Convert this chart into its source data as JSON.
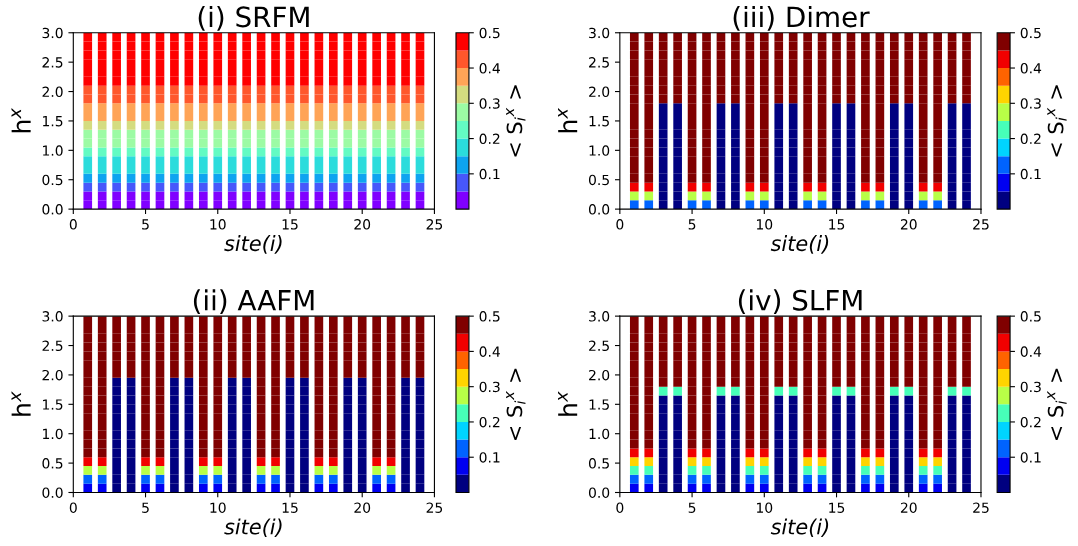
{
  "chart_data": [
    {
      "type": "heatmap",
      "title": "(i) SRFM",
      "xlabel": "site(i)",
      "ylabel": "h$^{x}$",
      "clabel": "< S$_{i}$$^{x}$ >",
      "x": [
        1,
        2,
        3,
        4,
        5,
        6,
        7,
        8,
        9,
        10,
        11,
        12,
        13,
        14,
        15,
        16,
        17,
        18,
        19,
        20,
        21,
        22,
        23,
        24
      ],
      "xlim": [
        0,
        25
      ],
      "xticks": [
        0,
        5,
        10,
        15,
        20,
        25
      ],
      "ylim": [
        0,
        3
      ],
      "yticks": [
        {
          "value": 0,
          "label": "0.0"
        },
        {
          "value": 0.5,
          "label": "0.5"
        },
        {
          "value": 1,
          "label": "1.0"
        },
        {
          "value": 1.5,
          "label": "1.5"
        },
        {
          "value": 2,
          "label": "2.0"
        },
        {
          "value": 2.5,
          "label": "2.5"
        },
        {
          "value": 3,
          "label": "3.0"
        }
      ],
      "clim": [
        0,
        0.5
      ],
      "cticks": [
        0.1,
        0.2,
        0.3,
        0.4,
        0.5
      ],
      "colors": [
        "#8000ff",
        "#4757fb",
        "#0ea4f0",
        "#2bdcdc",
        "#63fbc3",
        "#9cfba4",
        "#d4dc80",
        "#ffa457",
        "#ff572c",
        "#ff0000"
      ],
      "cells": [
        [
          0.5,
          0.5,
          0.5,
          0.5,
          0.5,
          0.5,
          0.5,
          0.5,
          0.5,
          0.5,
          0.5,
          0.5,
          0.5,
          0.5,
          0.5,
          0.5,
          0.5,
          0.5,
          0.5,
          0.5,
          0.5,
          0.5,
          0.5,
          0.5
        ],
        [
          0.49,
          0.49,
          0.49,
          0.49,
          0.49,
          0.49,
          0.49,
          0.49,
          0.49,
          0.49,
          0.49,
          0.49,
          0.49,
          0.49,
          0.49,
          0.49,
          0.49,
          0.49,
          0.49,
          0.49,
          0.49,
          0.49,
          0.49,
          0.49
        ],
        [
          0.49,
          0.49,
          0.49,
          0.49,
          0.49,
          0.49,
          0.49,
          0.49,
          0.49,
          0.49,
          0.49,
          0.49,
          0.49,
          0.49,
          0.49,
          0.49,
          0.49,
          0.49,
          0.49,
          0.49,
          0.49,
          0.49,
          0.49,
          0.49
        ],
        [
          0.48,
          0.48,
          0.48,
          0.48,
          0.48,
          0.48,
          0.48,
          0.48,
          0.48,
          0.48,
          0.48,
          0.48,
          0.48,
          0.48,
          0.48,
          0.48,
          0.48,
          0.48,
          0.48,
          0.48,
          0.48,
          0.48,
          0.48,
          0.48
        ],
        [
          0.47,
          0.47,
          0.47,
          0.47,
          0.47,
          0.47,
          0.47,
          0.47,
          0.47,
          0.47,
          0.47,
          0.47,
          0.47,
          0.47,
          0.47,
          0.47,
          0.47,
          0.47,
          0.47,
          0.47,
          0.47,
          0.47,
          0.47,
          0.47
        ],
        [
          0.46,
          0.46,
          0.46,
          0.46,
          0.46,
          0.46,
          0.46,
          0.46,
          0.46,
          0.46,
          0.46,
          0.46,
          0.46,
          0.46,
          0.46,
          0.46,
          0.46,
          0.46,
          0.46,
          0.46,
          0.46,
          0.46,
          0.46,
          0.46
        ],
        [
          0.44,
          0.44,
          0.44,
          0.44,
          0.44,
          0.44,
          0.44,
          0.44,
          0.44,
          0.44,
          0.44,
          0.44,
          0.44,
          0.44,
          0.44,
          0.44,
          0.44,
          0.44,
          0.44,
          0.44,
          0.44,
          0.44,
          0.44,
          0.44
        ],
        [
          0.41,
          0.41,
          0.41,
          0.41,
          0.41,
          0.41,
          0.41,
          0.41,
          0.41,
          0.41,
          0.41,
          0.41,
          0.41,
          0.41,
          0.41,
          0.41,
          0.41,
          0.41,
          0.41,
          0.41,
          0.41,
          0.41,
          0.41,
          0.41
        ],
        [
          0.385,
          0.385,
          0.385,
          0.385,
          0.385,
          0.385,
          0.385,
          0.385,
          0.385,
          0.385,
          0.385,
          0.385,
          0.385,
          0.385,
          0.385,
          0.385,
          0.385,
          0.385,
          0.385,
          0.385,
          0.385,
          0.385,
          0.385,
          0.385
        ],
        [
          0.355,
          0.355,
          0.355,
          0.355,
          0.355,
          0.355,
          0.355,
          0.355,
          0.355,
          0.355,
          0.355,
          0.355,
          0.355,
          0.355,
          0.355,
          0.355,
          0.355,
          0.355,
          0.355,
          0.355,
          0.355,
          0.355,
          0.355,
          0.355
        ],
        [
          0.325,
          0.325,
          0.325,
          0.325,
          0.325,
          0.325,
          0.325,
          0.325,
          0.325,
          0.325,
          0.325,
          0.325,
          0.325,
          0.325,
          0.325,
          0.325,
          0.325,
          0.325,
          0.325,
          0.325,
          0.325,
          0.325,
          0.325,
          0.325
        ],
        [
          0.295,
          0.295,
          0.295,
          0.295,
          0.295,
          0.295,
          0.295,
          0.295,
          0.295,
          0.295,
          0.295,
          0.295,
          0.295,
          0.295,
          0.295,
          0.295,
          0.295,
          0.295,
          0.295,
          0.295,
          0.295,
          0.295,
          0.295,
          0.295
        ],
        [
          0.265,
          0.265,
          0.265,
          0.265,
          0.265,
          0.265,
          0.265,
          0.265,
          0.265,
          0.265,
          0.265,
          0.265,
          0.265,
          0.265,
          0.265,
          0.265,
          0.265,
          0.265,
          0.265,
          0.265,
          0.265,
          0.265,
          0.265,
          0.265
        ],
        [
          0.23,
          0.23,
          0.23,
          0.23,
          0.23,
          0.23,
          0.23,
          0.23,
          0.23,
          0.23,
          0.23,
          0.23,
          0.23,
          0.23,
          0.23,
          0.23,
          0.23,
          0.23,
          0.23,
          0.23,
          0.23,
          0.23,
          0.23,
          0.23
        ],
        [
          0.195,
          0.195,
          0.195,
          0.195,
          0.195,
          0.195,
          0.195,
          0.195,
          0.195,
          0.195,
          0.195,
          0.195,
          0.195,
          0.195,
          0.195,
          0.195,
          0.195,
          0.195,
          0.195,
          0.195,
          0.195,
          0.195,
          0.195,
          0.195
        ],
        [
          0.155,
          0.155,
          0.155,
          0.155,
          0.155,
          0.155,
          0.155,
          0.155,
          0.155,
          0.155,
          0.155,
          0.155,
          0.155,
          0.155,
          0.155,
          0.155,
          0.155,
          0.155,
          0.155,
          0.155,
          0.155,
          0.155,
          0.155,
          0.155
        ],
        [
          0.12,
          0.12,
          0.12,
          0.12,
          0.12,
          0.12,
          0.12,
          0.12,
          0.12,
          0.12,
          0.12,
          0.12,
          0.12,
          0.12,
          0.12,
          0.12,
          0.12,
          0.12,
          0.12,
          0.12,
          0.12,
          0.12,
          0.12,
          0.12
        ],
        [
          0.08,
          0.08,
          0.08,
          0.08,
          0.08,
          0.08,
          0.08,
          0.08,
          0.08,
          0.08,
          0.08,
          0.08,
          0.08,
          0.08,
          0.08,
          0.08,
          0.08,
          0.08,
          0.08,
          0.08,
          0.08,
          0.08,
          0.08,
          0.08
        ],
        [
          0.045,
          0.045,
          0.045,
          0.045,
          0.045,
          0.045,
          0.045,
          0.045,
          0.045,
          0.045,
          0.045,
          0.045,
          0.045,
          0.045,
          0.045,
          0.045,
          0.045,
          0.045,
          0.045,
          0.045,
          0.045,
          0.045,
          0.045,
          0.045
        ],
        [
          0.02,
          0.02,
          0.02,
          0.02,
          0.02,
          0.02,
          0.02,
          0.02,
          0.02,
          0.02,
          0.02,
          0.02,
          0.02,
          0.02,
          0.02,
          0.02,
          0.02,
          0.02,
          0.02,
          0.02,
          0.02,
          0.02,
          0.02,
          0.02
        ]
      ]
    },
    {
      "type": "heatmap",
      "title": "(iii) Dimer",
      "xlabel": "site(i)",
      "ylabel": "h$^{x}$",
      "clabel": "< S$_{i}$$^{x}$ >",
      "x": [
        1,
        2,
        3,
        4,
        5,
        6,
        7,
        8,
        9,
        10,
        11,
        12,
        13,
        14,
        15,
        16,
        17,
        18,
        19,
        20,
        21,
        22,
        23,
        24
      ],
      "xlim": [
        0,
        25
      ],
      "xticks": [
        0,
        5,
        10,
        15,
        20,
        25
      ],
      "ylim": [
        0,
        3
      ],
      "yticks": [
        {
          "value": 0,
          "label": "0.0"
        },
        {
          "value": 0.5,
          "label": "0.5"
        },
        {
          "value": 1,
          "label": "1.0"
        },
        {
          "value": 1.5,
          "label": "1.5"
        },
        {
          "value": 2,
          "label": "2.0"
        },
        {
          "value": 2.5,
          "label": "2.5"
        },
        {
          "value": 3,
          "label": "3.0"
        }
      ],
      "clim": [
        0,
        0.5
      ],
      "cticks": [
        0.1,
        0.2,
        0.3,
        0.4,
        0.5
      ],
      "colors": [
        "#000080",
        "#0000f1",
        "#0063ff",
        "#00d4ff",
        "#47ffb8",
        "#b8ff47",
        "#ffd400",
        "#ff6300",
        "#f10000",
        "#800000"
      ],
      "cells": [
        [
          0.48,
          0.48,
          0.48,
          0.48,
          0.48,
          0.48,
          0.48,
          0.48,
          0.48,
          0.48,
          0.48,
          0.48,
          0.48,
          0.48,
          0.48,
          0.48,
          0.48,
          0.48,
          0.48,
          0.48,
          0.48,
          0.48,
          0.48,
          0.48
        ],
        [
          0.48,
          0.48,
          0.48,
          0.48,
          0.48,
          0.48,
          0.48,
          0.48,
          0.48,
          0.48,
          0.48,
          0.48,
          0.48,
          0.48,
          0.48,
          0.48,
          0.48,
          0.48,
          0.48,
          0.48,
          0.48,
          0.48,
          0.48,
          0.48
        ],
        [
          0.48,
          0.48,
          0.48,
          0.48,
          0.48,
          0.48,
          0.48,
          0.48,
          0.48,
          0.48,
          0.48,
          0.48,
          0.48,
          0.48,
          0.48,
          0.48,
          0.48,
          0.48,
          0.48,
          0.48,
          0.48,
          0.48,
          0.48,
          0.48
        ],
        [
          0.48,
          0.48,
          0.48,
          0.48,
          0.48,
          0.48,
          0.48,
          0.48,
          0.48,
          0.48,
          0.48,
          0.48,
          0.48,
          0.48,
          0.48,
          0.48,
          0.48,
          0.48,
          0.48,
          0.48,
          0.48,
          0.48,
          0.48,
          0.48
        ],
        [
          0.48,
          0.48,
          0.48,
          0.48,
          0.48,
          0.48,
          0.48,
          0.48,
          0.48,
          0.48,
          0.48,
          0.48,
          0.48,
          0.48,
          0.48,
          0.48,
          0.48,
          0.48,
          0.48,
          0.48,
          0.48,
          0.48,
          0.48,
          0.48
        ],
        [
          0.48,
          0.48,
          0.48,
          0.48,
          0.48,
          0.48,
          0.48,
          0.48,
          0.48,
          0.48,
          0.48,
          0.48,
          0.48,
          0.48,
          0.48,
          0.48,
          0.48,
          0.48,
          0.48,
          0.48,
          0.48,
          0.48,
          0.48,
          0.48
        ],
        [
          0.48,
          0.48,
          0.48,
          0.48,
          0.48,
          0.48,
          0.48,
          0.48,
          0.48,
          0.48,
          0.48,
          0.48,
          0.48,
          0.48,
          0.48,
          0.48,
          0.48,
          0.48,
          0.48,
          0.48,
          0.48,
          0.48,
          0.48,
          0.48
        ],
        [
          0.48,
          0.48,
          0.48,
          0.48,
          0.48,
          0.48,
          0.48,
          0.48,
          0.48,
          0.48,
          0.48,
          0.48,
          0.48,
          0.48,
          0.48,
          0.48,
          0.48,
          0.48,
          0.48,
          0.48,
          0.48,
          0.48,
          0.48,
          0.48
        ],
        [
          0.48,
          0.48,
          0.01,
          0.01,
          0.48,
          0.48,
          0.01,
          0.01,
          0.48,
          0.48,
          0.01,
          0.01,
          0.48,
          0.48,
          0.01,
          0.01,
          0.48,
          0.48,
          0.01,
          0.01,
          0.48,
          0.48,
          0.01,
          0.01
        ],
        [
          0.48,
          0.48,
          0.01,
          0.01,
          0.48,
          0.48,
          0.01,
          0.01,
          0.48,
          0.48,
          0.01,
          0.01,
          0.48,
          0.48,
          0.01,
          0.01,
          0.48,
          0.48,
          0.01,
          0.01,
          0.48,
          0.48,
          0.01,
          0.01
        ],
        [
          0.48,
          0.48,
          0.01,
          0.01,
          0.48,
          0.48,
          0.01,
          0.01,
          0.48,
          0.48,
          0.01,
          0.01,
          0.48,
          0.48,
          0.01,
          0.01,
          0.48,
          0.48,
          0.01,
          0.01,
          0.48,
          0.48,
          0.01,
          0.01
        ],
        [
          0.48,
          0.48,
          0.01,
          0.01,
          0.48,
          0.48,
          0.01,
          0.01,
          0.48,
          0.48,
          0.01,
          0.01,
          0.48,
          0.48,
          0.01,
          0.01,
          0.48,
          0.48,
          0.01,
          0.01,
          0.48,
          0.48,
          0.01,
          0.01
        ],
        [
          0.48,
          0.48,
          0.01,
          0.01,
          0.48,
          0.48,
          0.01,
          0.01,
          0.48,
          0.48,
          0.01,
          0.01,
          0.48,
          0.48,
          0.01,
          0.01,
          0.48,
          0.48,
          0.01,
          0.01,
          0.48,
          0.48,
          0.01,
          0.01
        ],
        [
          0.48,
          0.48,
          0.01,
          0.01,
          0.48,
          0.48,
          0.01,
          0.01,
          0.48,
          0.48,
          0.01,
          0.01,
          0.48,
          0.48,
          0.01,
          0.01,
          0.48,
          0.48,
          0.01,
          0.01,
          0.48,
          0.48,
          0.01,
          0.01
        ],
        [
          0.48,
          0.48,
          0.01,
          0.01,
          0.48,
          0.48,
          0.01,
          0.01,
          0.48,
          0.48,
          0.01,
          0.01,
          0.48,
          0.48,
          0.01,
          0.01,
          0.48,
          0.48,
          0.01,
          0.01,
          0.48,
          0.48,
          0.01,
          0.01
        ],
        [
          0.48,
          0.48,
          0.01,
          0.01,
          0.48,
          0.48,
          0.01,
          0.01,
          0.48,
          0.48,
          0.01,
          0.01,
          0.48,
          0.48,
          0.01,
          0.01,
          0.48,
          0.48,
          0.01,
          0.01,
          0.48,
          0.48,
          0.01,
          0.01
        ],
        [
          0.48,
          0.48,
          0.01,
          0.01,
          0.48,
          0.48,
          0.01,
          0.01,
          0.48,
          0.48,
          0.01,
          0.01,
          0.48,
          0.48,
          0.01,
          0.01,
          0.48,
          0.48,
          0.01,
          0.01,
          0.48,
          0.48,
          0.01,
          0.01
        ],
        [
          0.4,
          0.4,
          0.01,
          0.01,
          0.4,
          0.4,
          0.01,
          0.01,
          0.4,
          0.4,
          0.01,
          0.01,
          0.4,
          0.4,
          0.01,
          0.01,
          0.4,
          0.4,
          0.01,
          0.01,
          0.4,
          0.4,
          0.01,
          0.01
        ],
        [
          0.25,
          0.25,
          0.01,
          0.01,
          0.25,
          0.25,
          0.01,
          0.01,
          0.25,
          0.25,
          0.01,
          0.01,
          0.25,
          0.25,
          0.01,
          0.01,
          0.25,
          0.25,
          0.01,
          0.01,
          0.25,
          0.25,
          0.01,
          0.01
        ],
        [
          0.1,
          0.1,
          0.01,
          0.01,
          0.1,
          0.1,
          0.01,
          0.01,
          0.1,
          0.1,
          0.01,
          0.01,
          0.1,
          0.1,
          0.01,
          0.01,
          0.1,
          0.1,
          0.01,
          0.01,
          0.1,
          0.1,
          0.01,
          0.01
        ]
      ]
    },
    {
      "type": "heatmap",
      "title": "(ii) AAFM",
      "xlabel": "site(i)",
      "ylabel": "h$^{x}$",
      "clabel": "< S$_{i}$$^{x}$ >",
      "x": [
        1,
        2,
        3,
        4,
        5,
        6,
        7,
        8,
        9,
        10,
        11,
        12,
        13,
        14,
        15,
        16,
        17,
        18,
        19,
        20,
        21,
        22,
        23,
        24
      ],
      "xlim": [
        0,
        25
      ],
      "xticks": [
        0,
        5,
        10,
        15,
        20,
        25
      ],
      "ylim": [
        0,
        3
      ],
      "yticks": [
        {
          "value": 0,
          "label": "0.0"
        },
        {
          "value": 0.5,
          "label": "0.5"
        },
        {
          "value": 1,
          "label": "1.0"
        },
        {
          "value": 1.5,
          "label": "1.5"
        },
        {
          "value": 2,
          "label": "2.0"
        },
        {
          "value": 2.5,
          "label": "2.5"
        },
        {
          "value": 3,
          "label": "3.0"
        }
      ],
      "clim": [
        0,
        0.5
      ],
      "cticks": [
        0.1,
        0.2,
        0.3,
        0.4,
        0.5
      ],
      "colors": [
        "#000080",
        "#0000f1",
        "#0063ff",
        "#00d4ff",
        "#47ffb8",
        "#b8ff47",
        "#ffd400",
        "#ff6300",
        "#f10000",
        "#800000"
      ],
      "cells": [
        [
          0.48,
          0.48,
          0.48,
          0.48,
          0.48,
          0.48,
          0.48,
          0.48,
          0.48,
          0.48,
          0.48,
          0.48,
          0.48,
          0.48,
          0.48,
          0.48,
          0.48,
          0.48,
          0.48,
          0.48,
          0.48,
          0.48,
          0.48,
          0.48
        ],
        [
          0.48,
          0.48,
          0.48,
          0.48,
          0.48,
          0.48,
          0.48,
          0.48,
          0.48,
          0.48,
          0.48,
          0.48,
          0.48,
          0.48,
          0.48,
          0.48,
          0.48,
          0.48,
          0.48,
          0.48,
          0.48,
          0.48,
          0.48,
          0.48
        ],
        [
          0.48,
          0.48,
          0.48,
          0.48,
          0.48,
          0.48,
          0.48,
          0.48,
          0.48,
          0.48,
          0.48,
          0.48,
          0.48,
          0.48,
          0.48,
          0.48,
          0.48,
          0.48,
          0.48,
          0.48,
          0.48,
          0.48,
          0.48,
          0.48
        ],
        [
          0.48,
          0.48,
          0.48,
          0.48,
          0.48,
          0.48,
          0.48,
          0.48,
          0.48,
          0.48,
          0.48,
          0.48,
          0.48,
          0.48,
          0.48,
          0.48,
          0.48,
          0.48,
          0.48,
          0.48,
          0.48,
          0.48,
          0.48,
          0.48
        ],
        [
          0.48,
          0.48,
          0.48,
          0.48,
          0.48,
          0.48,
          0.48,
          0.48,
          0.48,
          0.48,
          0.48,
          0.48,
          0.48,
          0.48,
          0.48,
          0.48,
          0.48,
          0.48,
          0.48,
          0.48,
          0.48,
          0.48,
          0.48,
          0.48
        ],
        [
          0.48,
          0.48,
          0.48,
          0.48,
          0.48,
          0.48,
          0.48,
          0.48,
          0.48,
          0.48,
          0.48,
          0.48,
          0.48,
          0.48,
          0.48,
          0.48,
          0.48,
          0.48,
          0.48,
          0.48,
          0.48,
          0.48,
          0.48,
          0.48
        ],
        [
          0.48,
          0.48,
          0.48,
          0.48,
          0.48,
          0.48,
          0.48,
          0.48,
          0.48,
          0.48,
          0.48,
          0.48,
          0.48,
          0.48,
          0.48,
          0.48,
          0.48,
          0.48,
          0.48,
          0.48,
          0.48,
          0.48,
          0.48,
          0.48
        ],
        [
          0.48,
          0.48,
          0.01,
          0.01,
          0.48,
          0.48,
          0.01,
          0.01,
          0.48,
          0.48,
          0.01,
          0.01,
          0.48,
          0.48,
          0.01,
          0.01,
          0.48,
          0.48,
          0.01,
          0.01,
          0.48,
          0.48,
          0.01,
          0.01
        ],
        [
          0.48,
          0.48,
          0.01,
          0.01,
          0.48,
          0.48,
          0.01,
          0.01,
          0.48,
          0.48,
          0.01,
          0.01,
          0.48,
          0.48,
          0.01,
          0.01,
          0.48,
          0.48,
          0.01,
          0.01,
          0.48,
          0.48,
          0.01,
          0.01
        ],
        [
          0.48,
          0.48,
          0.01,
          0.01,
          0.48,
          0.48,
          0.01,
          0.01,
          0.48,
          0.48,
          0.01,
          0.01,
          0.48,
          0.48,
          0.01,
          0.01,
          0.48,
          0.48,
          0.01,
          0.01,
          0.48,
          0.48,
          0.01,
          0.01
        ],
        [
          0.48,
          0.48,
          0.01,
          0.01,
          0.48,
          0.48,
          0.01,
          0.01,
          0.48,
          0.48,
          0.01,
          0.01,
          0.48,
          0.48,
          0.01,
          0.01,
          0.48,
          0.48,
          0.01,
          0.01,
          0.48,
          0.48,
          0.01,
          0.01
        ],
        [
          0.48,
          0.48,
          0.01,
          0.01,
          0.48,
          0.48,
          0.01,
          0.01,
          0.48,
          0.48,
          0.01,
          0.01,
          0.48,
          0.48,
          0.01,
          0.01,
          0.48,
          0.48,
          0.01,
          0.01,
          0.48,
          0.48,
          0.01,
          0.01
        ],
        [
          0.48,
          0.48,
          0.01,
          0.01,
          0.48,
          0.48,
          0.01,
          0.01,
          0.48,
          0.48,
          0.01,
          0.01,
          0.48,
          0.48,
          0.01,
          0.01,
          0.48,
          0.48,
          0.01,
          0.01,
          0.48,
          0.48,
          0.01,
          0.01
        ],
        [
          0.48,
          0.48,
          0.01,
          0.01,
          0.48,
          0.48,
          0.01,
          0.01,
          0.48,
          0.48,
          0.01,
          0.01,
          0.48,
          0.48,
          0.01,
          0.01,
          0.48,
          0.48,
          0.01,
          0.01,
          0.48,
          0.48,
          0.01,
          0.01
        ],
        [
          0.48,
          0.48,
          0.01,
          0.01,
          0.48,
          0.48,
          0.01,
          0.01,
          0.48,
          0.48,
          0.01,
          0.01,
          0.48,
          0.48,
          0.01,
          0.01,
          0.48,
          0.48,
          0.01,
          0.01,
          0.48,
          0.48,
          0.01,
          0.01
        ],
        [
          0.48,
          0.48,
          0.01,
          0.01,
          0.48,
          0.48,
          0.01,
          0.01,
          0.48,
          0.48,
          0.01,
          0.01,
          0.48,
          0.48,
          0.01,
          0.01,
          0.48,
          0.48,
          0.01,
          0.01,
          0.48,
          0.48,
          0.01,
          0.01
        ],
        [
          0.42,
          0.42,
          0.01,
          0.01,
          0.42,
          0.42,
          0.01,
          0.01,
          0.42,
          0.42,
          0.01,
          0.01,
          0.42,
          0.42,
          0.01,
          0.01,
          0.42,
          0.42,
          0.01,
          0.01,
          0.42,
          0.42,
          0.01,
          0.01
        ],
        [
          0.3,
          0.3,
          0.01,
          0.01,
          0.3,
          0.3,
          0.01,
          0.01,
          0.3,
          0.3,
          0.01,
          0.01,
          0.3,
          0.3,
          0.01,
          0.01,
          0.3,
          0.3,
          0.01,
          0.01,
          0.3,
          0.3,
          0.01,
          0.01
        ],
        [
          0.15,
          0.15,
          0.01,
          0.01,
          0.15,
          0.15,
          0.01,
          0.01,
          0.15,
          0.15,
          0.01,
          0.01,
          0.15,
          0.15,
          0.01,
          0.01,
          0.15,
          0.15,
          0.01,
          0.01,
          0.15,
          0.15,
          0.01,
          0.01
        ],
        [
          0.05,
          0.05,
          0.01,
          0.01,
          0.05,
          0.05,
          0.01,
          0.01,
          0.05,
          0.05,
          0.01,
          0.01,
          0.05,
          0.05,
          0.01,
          0.01,
          0.05,
          0.05,
          0.01,
          0.01,
          0.05,
          0.05,
          0.01,
          0.01
        ]
      ]
    },
    {
      "type": "heatmap",
      "title": "(iv) SLFM",
      "xlabel": "site(i)",
      "ylabel": "h$^{x}$",
      "clabel": "< S$_{i}$$^{x}$ >",
      "x": [
        1,
        2,
        3,
        4,
        5,
        6,
        7,
        8,
        9,
        10,
        11,
        12,
        13,
        14,
        15,
        16,
        17,
        18,
        19,
        20,
        21,
        22,
        23,
        24
      ],
      "xlim": [
        0,
        25
      ],
      "xticks": [
        0,
        5,
        10,
        15,
        20,
        25
      ],
      "ylim": [
        0,
        3
      ],
      "yticks": [
        {
          "value": 0,
          "label": "0.0"
        },
        {
          "value": 0.5,
          "label": "0.5"
        },
        {
          "value": 1,
          "label": "1.0"
        },
        {
          "value": 1.5,
          "label": "1.5"
        },
        {
          "value": 2,
          "label": "2.0"
        },
        {
          "value": 2.5,
          "label": "2.5"
        },
        {
          "value": 3,
          "label": "3.0"
        }
      ],
      "clim": [
        0,
        0.5
      ],
      "cticks": [
        0.1,
        0.2,
        0.3,
        0.4,
        0.5
      ],
      "colors": [
        "#000080",
        "#0000f1",
        "#0063ff",
        "#00d4ff",
        "#47ffb8",
        "#b8ff47",
        "#ffd400",
        "#ff6300",
        "#f10000",
        "#800000"
      ],
      "cells": [
        [
          0.48,
          0.48,
          0.48,
          0.48,
          0.48,
          0.48,
          0.48,
          0.48,
          0.48,
          0.48,
          0.48,
          0.48,
          0.48,
          0.48,
          0.48,
          0.48,
          0.48,
          0.48,
          0.48,
          0.48,
          0.48,
          0.48,
          0.48,
          0.48
        ],
        [
          0.48,
          0.48,
          0.48,
          0.48,
          0.48,
          0.48,
          0.48,
          0.48,
          0.48,
          0.48,
          0.48,
          0.48,
          0.48,
          0.48,
          0.48,
          0.48,
          0.48,
          0.48,
          0.48,
          0.48,
          0.48,
          0.48,
          0.48,
          0.48
        ],
        [
          0.48,
          0.48,
          0.48,
          0.48,
          0.48,
          0.48,
          0.48,
          0.48,
          0.48,
          0.48,
          0.48,
          0.48,
          0.48,
          0.48,
          0.48,
          0.48,
          0.48,
          0.48,
          0.48,
          0.48,
          0.48,
          0.48,
          0.48,
          0.48
        ],
        [
          0.48,
          0.48,
          0.48,
          0.48,
          0.48,
          0.48,
          0.48,
          0.48,
          0.48,
          0.48,
          0.48,
          0.48,
          0.48,
          0.48,
          0.48,
          0.48,
          0.48,
          0.48,
          0.48,
          0.48,
          0.48,
          0.48,
          0.48,
          0.48
        ],
        [
          0.48,
          0.48,
          0.48,
          0.48,
          0.48,
          0.48,
          0.48,
          0.48,
          0.48,
          0.48,
          0.48,
          0.48,
          0.48,
          0.48,
          0.48,
          0.48,
          0.48,
          0.48,
          0.48,
          0.48,
          0.48,
          0.48,
          0.48,
          0.48
        ],
        [
          0.48,
          0.48,
          0.48,
          0.48,
          0.48,
          0.48,
          0.48,
          0.48,
          0.48,
          0.48,
          0.48,
          0.48,
          0.48,
          0.48,
          0.48,
          0.48,
          0.48,
          0.48,
          0.48,
          0.48,
          0.48,
          0.48,
          0.48,
          0.48
        ],
        [
          0.48,
          0.48,
          0.48,
          0.48,
          0.48,
          0.48,
          0.48,
          0.48,
          0.48,
          0.48,
          0.48,
          0.48,
          0.48,
          0.48,
          0.48,
          0.48,
          0.48,
          0.48,
          0.48,
          0.48,
          0.48,
          0.48,
          0.48,
          0.48
        ],
        [
          0.48,
          0.48,
          0.45,
          0.45,
          0.48,
          0.48,
          0.45,
          0.45,
          0.48,
          0.48,
          0.45,
          0.45,
          0.48,
          0.48,
          0.45,
          0.45,
          0.48,
          0.48,
          0.45,
          0.45,
          0.48,
          0.48,
          0.45,
          0.45
        ],
        [
          0.48,
          0.48,
          0.2,
          0.2,
          0.48,
          0.48,
          0.2,
          0.2,
          0.48,
          0.48,
          0.2,
          0.2,
          0.48,
          0.48,
          0.2,
          0.2,
          0.48,
          0.48,
          0.2,
          0.2,
          0.48,
          0.48,
          0.2,
          0.2
        ],
        [
          0.48,
          0.48,
          0.01,
          0.01,
          0.48,
          0.48,
          0.01,
          0.01,
          0.48,
          0.48,
          0.01,
          0.01,
          0.48,
          0.48,
          0.01,
          0.01,
          0.48,
          0.48,
          0.01,
          0.01,
          0.48,
          0.48,
          0.01,
          0.01
        ],
        [
          0.48,
          0.48,
          0.01,
          0.01,
          0.48,
          0.48,
          0.01,
          0.01,
          0.48,
          0.48,
          0.01,
          0.01,
          0.48,
          0.48,
          0.01,
          0.01,
          0.48,
          0.48,
          0.01,
          0.01,
          0.48,
          0.48,
          0.01,
          0.01
        ],
        [
          0.48,
          0.48,
          0.01,
          0.01,
          0.48,
          0.48,
          0.01,
          0.01,
          0.48,
          0.48,
          0.01,
          0.01,
          0.48,
          0.48,
          0.01,
          0.01,
          0.48,
          0.48,
          0.01,
          0.01,
          0.48,
          0.48,
          0.01,
          0.01
        ],
        [
          0.48,
          0.48,
          0.01,
          0.01,
          0.48,
          0.48,
          0.01,
          0.01,
          0.48,
          0.48,
          0.01,
          0.01,
          0.48,
          0.48,
          0.01,
          0.01,
          0.48,
          0.48,
          0.01,
          0.01,
          0.48,
          0.48,
          0.01,
          0.01
        ],
        [
          0.48,
          0.48,
          0.01,
          0.01,
          0.48,
          0.48,
          0.01,
          0.01,
          0.48,
          0.48,
          0.01,
          0.01,
          0.48,
          0.48,
          0.01,
          0.01,
          0.48,
          0.48,
          0.01,
          0.01,
          0.48,
          0.48,
          0.01,
          0.01
        ],
        [
          0.48,
          0.48,
          0.01,
          0.01,
          0.48,
          0.48,
          0.01,
          0.01,
          0.48,
          0.48,
          0.01,
          0.01,
          0.48,
          0.48,
          0.01,
          0.01,
          0.48,
          0.48,
          0.01,
          0.01,
          0.48,
          0.48,
          0.01,
          0.01
        ],
        [
          0.44,
          0.44,
          0.01,
          0.01,
          0.44,
          0.44,
          0.01,
          0.01,
          0.44,
          0.44,
          0.01,
          0.01,
          0.44,
          0.44,
          0.01,
          0.01,
          0.44,
          0.44,
          0.01,
          0.01,
          0.44,
          0.44,
          0.01,
          0.01
        ],
        [
          0.33,
          0.33,
          0.01,
          0.01,
          0.33,
          0.33,
          0.01,
          0.01,
          0.33,
          0.33,
          0.01,
          0.01,
          0.33,
          0.33,
          0.01,
          0.01,
          0.33,
          0.33,
          0.01,
          0.01,
          0.33,
          0.33,
          0.01,
          0.01
        ],
        [
          0.22,
          0.22,
          0.01,
          0.01,
          0.22,
          0.22,
          0.01,
          0.01,
          0.22,
          0.22,
          0.01,
          0.01,
          0.22,
          0.22,
          0.01,
          0.01,
          0.22,
          0.22,
          0.01,
          0.01,
          0.22,
          0.22,
          0.01,
          0.01
        ],
        [
          0.12,
          0.12,
          0.01,
          0.01,
          0.12,
          0.12,
          0.01,
          0.01,
          0.12,
          0.12,
          0.01,
          0.01,
          0.12,
          0.12,
          0.01,
          0.01,
          0.12,
          0.12,
          0.01,
          0.01,
          0.12,
          0.12,
          0.01,
          0.01
        ],
        [
          0.05,
          0.05,
          0.01,
          0.01,
          0.05,
          0.05,
          0.01,
          0.01,
          0.05,
          0.05,
          0.01,
          0.01,
          0.05,
          0.05,
          0.01,
          0.01,
          0.05,
          0.05,
          0.01,
          0.01,
          0.05,
          0.05,
          0.01,
          0.01
        ]
      ]
    }
  ]
}
